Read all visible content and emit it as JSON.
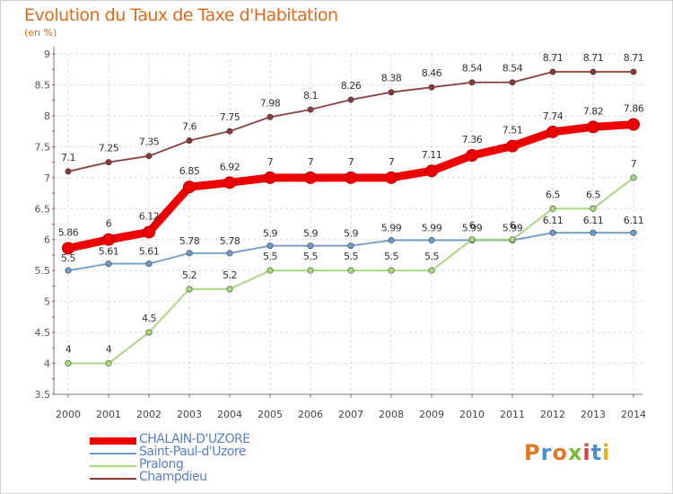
{
  "header": {
    "title": "Evolution du Taux de Taxe d'Habitation",
    "unit": "(en %)"
  },
  "logo": {
    "text": "Proxiti",
    "colors": [
      "#e0782a",
      "#4a8fd0",
      "#e0782a",
      "#7cba3c",
      "#d94040",
      "#4a8fd0",
      "#e0b020"
    ]
  },
  "chart_data": {
    "type": "line",
    "x": [
      "2000",
      "2001",
      "2002",
      "2003",
      "2004",
      "2005",
      "2006",
      "2007",
      "2008",
      "2009",
      "2010",
      "2011",
      "2012",
      "2013",
      "2014"
    ],
    "ylim": [
      3.5,
      9
    ],
    "yticks": [
      "3.5",
      "4",
      "4.5",
      "5",
      "5.5",
      "6",
      "6.5",
      "7",
      "7.5",
      "8",
      "8.5",
      "9"
    ],
    "grid": true,
    "legend_position": "bottom-left",
    "series": [
      {
        "name": "CHALAIN-D'UZORE",
        "color": "#ee0000",
        "values": [
          5.86,
          6,
          6.12,
          6.85,
          6.92,
          7,
          7,
          7,
          7,
          7.11,
          7.36,
          7.51,
          7.74,
          7.82,
          7.86
        ],
        "labels": [
          "5.86",
          "6",
          "6.12",
          "6.85",
          "6.92",
          "7",
          "7",
          "7",
          "7",
          "7.11",
          "7.36",
          "7.51",
          "7.74",
          "7.82",
          "7.86"
        ]
      },
      {
        "name": "Saint-Paul-d'Uzore",
        "color": "#6a9ccc",
        "values": [
          5.5,
          5.61,
          5.61,
          5.78,
          5.78,
          5.9,
          5.9,
          5.9,
          5.99,
          5.99,
          5.99,
          5.99,
          6.11,
          6.11,
          6.11
        ],
        "labels": [
          "5.5",
          "5.61",
          "5.61",
          "5.78",
          "5.78",
          "5.9",
          "5.9",
          "5.9",
          "5.99",
          "5.99",
          "5.99",
          "5.99",
          "6.11",
          "6.11",
          "6.11"
        ]
      },
      {
        "name": "Pralong",
        "color": "#a8dc78",
        "values": [
          4,
          4,
          4.5,
          5.2,
          5.2,
          5.5,
          5.5,
          5.5,
          5.5,
          5.5,
          6,
          6,
          6.5,
          6.5,
          7
        ],
        "labels": [
          "4",
          "4",
          "4.5",
          "5.2",
          "5.2",
          "5.5",
          "5.5",
          "5.5",
          "5.5",
          "5.5",
          "6",
          "6",
          "6.5",
          "6.5",
          "7"
        ]
      },
      {
        "name": "Champdieu",
        "color": "#8a3838",
        "values": [
          7.1,
          7.25,
          7.35,
          7.6,
          7.75,
          7.98,
          8.1,
          8.26,
          8.38,
          8.46,
          8.54,
          8.54,
          8.71,
          8.71,
          8.71
        ],
        "labels": [
          "7.1",
          "7.25",
          "7.35",
          "7.6",
          "7.75",
          "7.98",
          "8.1",
          "8.26",
          "8.38",
          "8.46",
          "8.54",
          "8.54",
          "8.71",
          "8.71",
          "8.71"
        ]
      }
    ]
  }
}
